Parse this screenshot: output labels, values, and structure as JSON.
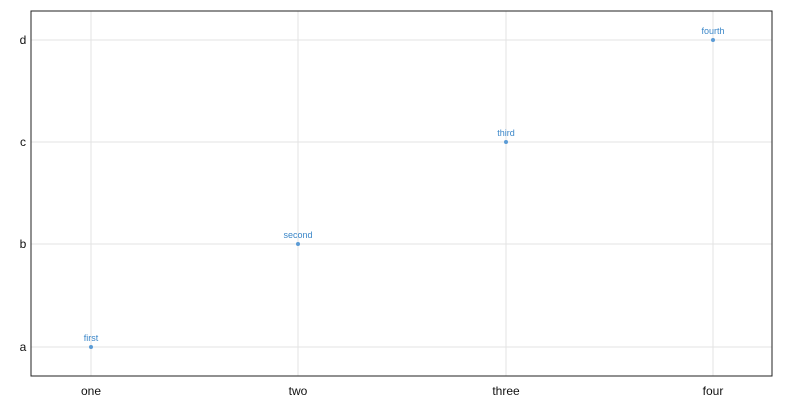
{
  "chart_data": {
    "type": "scatter",
    "title": "",
    "xlabel": "",
    "ylabel": "",
    "x_categories": [
      "one",
      "two",
      "three",
      "four"
    ],
    "y_categories": [
      "a",
      "b",
      "c",
      "d"
    ],
    "grid": true,
    "legend": "none",
    "colors": {
      "point": "#5b9bd5",
      "label": "#3a86c8",
      "grid": "#e3e3e3",
      "frame": "#222222"
    },
    "points": [
      {
        "x": "one",
        "y": "a",
        "label": "first"
      },
      {
        "x": "two",
        "y": "b",
        "label": "second"
      },
      {
        "x": "three",
        "y": "c",
        "label": "third"
      },
      {
        "x": "four",
        "y": "d",
        "label": "fourth"
      }
    ]
  }
}
